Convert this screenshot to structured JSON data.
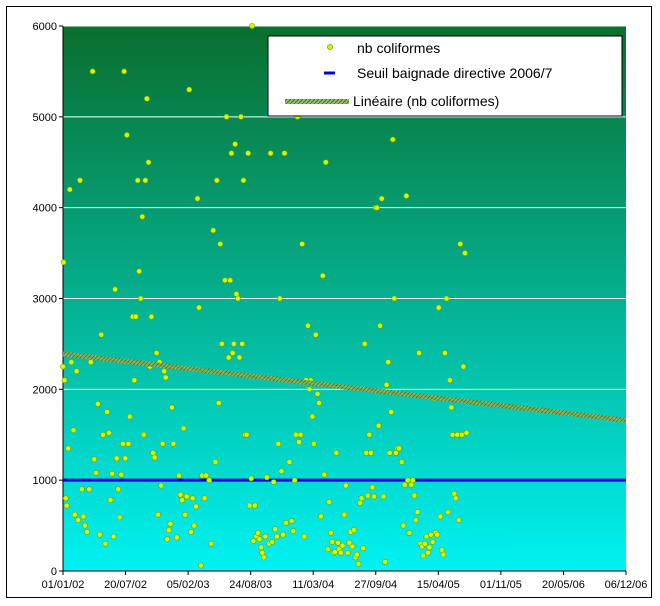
{
  "chart_data": {
    "type": "scatter",
    "title": "",
    "xlabel": "",
    "ylabel": "",
    "ylim": [
      0,
      6000
    ],
    "y_ticks": [
      0,
      1000,
      2000,
      3000,
      4000,
      5000,
      6000
    ],
    "x_ticks": [
      "01/01/02",
      "20/07/02",
      "05/02/03",
      "24/08/03",
      "11/03/04",
      "27/09/04",
      "15/04/05",
      "01/11/05",
      "20/05/06",
      "06/12/06"
    ],
    "x_range": [
      "2002-01-01",
      "2006-12-31"
    ],
    "grid": true,
    "legend_position": "top-right",
    "colors": {
      "points": "#ccff00",
      "points_stroke": "#7a9a00",
      "threshold": "#0000dd",
      "trend": "#6e9a4e",
      "bg_top": "#0a6e2e",
      "bg_bottom": "#00f2f2"
    },
    "series": [
      {
        "name": "nb coliformes",
        "kind": "scatter",
        "points": [
          [
            "2002-01-01",
            2250
          ],
          [
            "2002-01-03",
            3400
          ],
          [
            "2002-01-06",
            2100
          ],
          [
            "2002-01-10",
            800
          ],
          [
            "2002-01-13",
            720
          ],
          [
            "2002-01-18",
            1350
          ],
          [
            "2002-01-23",
            4200
          ],
          [
            "2002-01-28",
            2300
          ],
          [
            "2002-02-04",
            1550
          ],
          [
            "2002-02-08",
            620
          ],
          [
            "2002-02-14",
            2200
          ],
          [
            "2002-02-19",
            560
          ],
          [
            "2002-02-25",
            4300
          ],
          [
            "2002-03-03",
            900
          ],
          [
            "2002-03-08",
            600
          ],
          [
            "2002-03-13",
            500
          ],
          [
            "2002-03-20",
            430
          ],
          [
            "2002-03-27",
            900
          ],
          [
            "2002-04-01",
            2300
          ],
          [
            "2002-04-07",
            5500
          ],
          [
            "2002-04-12",
            1230
          ],
          [
            "2002-04-18",
            1080
          ],
          [
            "2002-04-24",
            1840
          ],
          [
            "2002-04-30",
            400
          ],
          [
            "2002-05-05",
            2600
          ],
          [
            "2002-05-11",
            1500
          ],
          [
            "2002-05-18",
            300
          ],
          [
            "2002-05-24",
            1750
          ],
          [
            "2002-05-30",
            1520
          ],
          [
            "2002-06-04",
            780
          ],
          [
            "2002-06-09",
            1070
          ],
          [
            "2002-06-14",
            380
          ],
          [
            "2002-06-19",
            3100
          ],
          [
            "2002-06-24",
            1240
          ],
          [
            "2002-06-29",
            900
          ],
          [
            "2002-07-04",
            590
          ],
          [
            "2002-07-09",
            1060
          ],
          [
            "2002-07-14",
            1400
          ],
          [
            "2002-07-18",
            5500
          ],
          [
            "2002-07-22",
            1240
          ],
          [
            "2002-07-27",
            4800
          ],
          [
            "2002-08-01",
            1400
          ],
          [
            "2002-08-06",
            1700
          ],
          [
            "2002-08-15",
            2800
          ],
          [
            "2002-08-20",
            2100
          ],
          [
            "2002-08-25",
            2800
          ],
          [
            "2002-08-31",
            4300
          ],
          [
            "2002-09-05",
            3300
          ],
          [
            "2002-09-10",
            3000
          ],
          [
            "2002-09-15",
            3900
          ],
          [
            "2002-09-20",
            1500
          ],
          [
            "2002-09-25",
            4300
          ],
          [
            "2002-09-30",
            5200
          ],
          [
            "2002-10-05",
            4500
          ],
          [
            "2002-10-10",
            2250
          ],
          [
            "2002-10-15",
            2800
          ],
          [
            "2002-10-20",
            1300
          ],
          [
            "2002-10-25",
            1250
          ],
          [
            "2002-10-31",
            2400
          ],
          [
            "2002-11-05",
            620
          ],
          [
            "2002-11-10",
            2300
          ],
          [
            "2002-11-15",
            940
          ],
          [
            "2002-11-20",
            1400
          ],
          [
            "2002-11-25",
            2200
          ],
          [
            "2002-11-30",
            2130
          ],
          [
            "2002-12-05",
            350
          ],
          [
            "2002-12-10",
            450
          ],
          [
            "2002-12-15",
            520
          ],
          [
            "2002-12-20",
            1800
          ],
          [
            "2002-12-25",
            1400
          ],
          [
            "2003-01-05",
            370
          ],
          [
            "2003-01-12",
            1050
          ],
          [
            "2003-01-17",
            840
          ],
          [
            "2003-01-22",
            780
          ],
          [
            "2003-01-27",
            1570
          ],
          [
            "2003-02-01",
            620
          ],
          [
            "2003-02-06",
            820
          ],
          [
            "2003-02-14",
            5300
          ],
          [
            "2003-02-20",
            430
          ],
          [
            "2003-02-25",
            800
          ],
          [
            "2003-03-02",
            500
          ],
          [
            "2003-03-08",
            710
          ],
          [
            "2003-03-13",
            4100
          ],
          [
            "2003-03-18",
            2900
          ],
          [
            "2003-03-24",
            60
          ],
          [
            "2003-03-28",
            1050
          ],
          [
            "2003-04-05",
            800
          ],
          [
            "2003-04-10",
            1050
          ],
          [
            "2003-04-20",
            1000
          ],
          [
            "2003-04-26",
            300
          ],
          [
            "2003-05-03",
            3750
          ],
          [
            "2003-05-10",
            1200
          ],
          [
            "2003-05-15",
            4300
          ],
          [
            "2003-05-21",
            1850
          ],
          [
            "2003-05-26",
            3600
          ],
          [
            "2003-05-31",
            2500
          ],
          [
            "2003-06-10",
            3200
          ],
          [
            "2003-06-15",
            5000
          ],
          [
            "2003-06-22",
            2350
          ],
          [
            "2003-06-27",
            3200
          ],
          [
            "2003-07-01",
            4600
          ],
          [
            "2003-07-05",
            2400
          ],
          [
            "2003-07-09",
            2500
          ],
          [
            "2003-07-13",
            4700
          ],
          [
            "2003-07-17",
            3050
          ],
          [
            "2003-07-22",
            3000
          ],
          [
            "2003-07-27",
            2350
          ],
          [
            "2003-08-01",
            5000
          ],
          [
            "2003-08-05",
            2500
          ],
          [
            "2003-08-09",
            4300
          ],
          [
            "2003-08-14",
            1500
          ],
          [
            "2003-08-19",
            1500
          ],
          [
            "2003-08-24",
            4600
          ],
          [
            "2003-08-29",
            720
          ],
          [
            "2003-09-03",
            1020
          ],
          [
            "2003-09-06",
            6000
          ],
          [
            "2003-09-10",
            330
          ],
          [
            "2003-09-15",
            720
          ],
          [
            "2003-09-20",
            380
          ],
          [
            "2003-09-25",
            420
          ],
          [
            "2003-09-30",
            350
          ],
          [
            "2003-10-05",
            260
          ],
          [
            "2003-10-09",
            200
          ],
          [
            "2003-10-14",
            150
          ],
          [
            "2003-10-19",
            380
          ],
          [
            "2003-10-24",
            1030
          ],
          [
            "2003-10-31",
            300
          ],
          [
            "2003-11-05",
            4600
          ],
          [
            "2003-11-10",
            320
          ],
          [
            "2003-11-15",
            980
          ],
          [
            "2003-11-20",
            460
          ],
          [
            "2003-11-25",
            380
          ],
          [
            "2003-11-30",
            1400
          ],
          [
            "2003-12-05",
            3000
          ],
          [
            "2003-12-10",
            1100
          ],
          [
            "2003-12-15",
            400
          ],
          [
            "2003-12-20",
            4600
          ],
          [
            "2003-12-25",
            530
          ],
          [
            "2004-01-05",
            1200
          ],
          [
            "2004-01-12",
            550
          ],
          [
            "2004-01-17",
            440
          ],
          [
            "2004-01-22",
            1000
          ],
          [
            "2004-01-26",
            1500
          ],
          [
            "2004-01-31",
            5000
          ],
          [
            "2004-02-05",
            1420
          ],
          [
            "2004-02-10",
            1500
          ],
          [
            "2004-02-15",
            3600
          ],
          [
            "2004-02-22",
            380
          ],
          [
            "2004-02-28",
            2100
          ],
          [
            "2004-03-05",
            2700
          ],
          [
            "2004-03-10",
            2000
          ],
          [
            "2004-03-14",
            2100
          ],
          [
            "2004-03-19",
            1700
          ],
          [
            "2004-03-24",
            1400
          ],
          [
            "2004-03-30",
            2600
          ],
          [
            "2004-04-05",
            1950
          ],
          [
            "2004-04-10",
            1850
          ],
          [
            "2004-04-16",
            600
          ],
          [
            "2004-04-22",
            3250
          ],
          [
            "2004-04-27",
            1060
          ],
          [
            "2004-05-02",
            4500
          ],
          [
            "2004-05-08",
            240
          ],
          [
            "2004-05-13",
            760
          ],
          [
            "2004-05-18",
            420
          ],
          [
            "2004-05-23",
            320
          ],
          [
            "2004-05-27",
            200
          ],
          [
            "2004-06-01",
            210
          ],
          [
            "2004-06-05",
            1300
          ],
          [
            "2004-06-10",
            310
          ],
          [
            "2004-06-14",
            240
          ],
          [
            "2004-06-20",
            200
          ],
          [
            "2004-06-25",
            280
          ],
          [
            "2004-07-01",
            620
          ],
          [
            "2004-07-06",
            940
          ],
          [
            "2004-07-12",
            200
          ],
          [
            "2004-07-17",
            310
          ],
          [
            "2004-07-22",
            430
          ],
          [
            "2004-07-27",
            270
          ],
          [
            "2004-08-01",
            450
          ],
          [
            "2004-08-06",
            150
          ],
          [
            "2004-08-11",
            180
          ],
          [
            "2004-08-16",
            80
          ],
          [
            "2004-08-21",
            750
          ],
          [
            "2004-08-26",
            800
          ],
          [
            "2004-08-31",
            250
          ],
          [
            "2004-09-05",
            2500
          ],
          [
            "2004-09-10",
            1300
          ],
          [
            "2004-09-15",
            830
          ],
          [
            "2004-09-20",
            1500
          ],
          [
            "2004-09-25",
            1300
          ],
          [
            "2004-09-30",
            920
          ],
          [
            "2004-10-05",
            820
          ],
          [
            "2004-10-10",
            4000
          ],
          [
            "2004-10-15",
            4000
          ],
          [
            "2004-10-20",
            1600
          ],
          [
            "2004-10-25",
            2700
          ],
          [
            "2004-10-30",
            4100
          ],
          [
            "2004-11-05",
            820
          ],
          [
            "2004-11-10",
            100
          ],
          [
            "2004-11-15",
            2050
          ],
          [
            "2004-11-20",
            2300
          ],
          [
            "2004-11-25",
            1300
          ],
          [
            "2004-11-30",
            1750
          ],
          [
            "2004-12-05",
            4750
          ],
          [
            "2004-12-10",
            3000
          ],
          [
            "2004-12-15",
            1300
          ],
          [
            "2004-12-20",
            1350
          ],
          [
            "2004-12-25",
            1350
          ],
          [
            "2005-01-03",
            1200
          ],
          [
            "2005-01-08",
            500
          ],
          [
            "2005-01-13",
            950
          ],
          [
            "2005-01-18",
            4130
          ],
          [
            "2005-01-23",
            1000
          ],
          [
            "2005-01-28",
            420
          ],
          [
            "2005-02-03",
            950
          ],
          [
            "2005-02-08",
            1000
          ],
          [
            "2005-02-13",
            830
          ],
          [
            "2005-02-18",
            560
          ],
          [
            "2005-02-23",
            650
          ],
          [
            "2005-02-28",
            2400
          ],
          [
            "2005-03-05",
            300
          ],
          [
            "2005-03-10",
            270
          ],
          [
            "2005-03-14",
            170
          ],
          [
            "2005-03-19",
            300
          ],
          [
            "2005-03-24",
            380
          ],
          [
            "2005-03-29",
            200
          ],
          [
            "2005-04-03",
            260
          ],
          [
            "2005-04-08",
            400
          ],
          [
            "2005-04-13",
            320
          ],
          [
            "2005-04-18",
            1900
          ],
          [
            "2005-04-23",
            420
          ],
          [
            "2005-04-28",
            400
          ],
          [
            "2005-05-03",
            2900
          ],
          [
            "2005-05-08",
            600
          ],
          [
            "2005-05-13",
            230
          ],
          [
            "2005-05-18",
            180
          ],
          [
            "2005-05-23",
            2400
          ],
          [
            "2005-05-28",
            3000
          ],
          [
            "2005-06-02",
            650
          ],
          [
            "2005-06-08",
            2100
          ],
          [
            "2005-06-13",
            1800
          ],
          [
            "2005-06-17",
            1500
          ],
          [
            "2005-06-22",
            850
          ],
          [
            "2005-06-27",
            800
          ],
          [
            "2005-07-02",
            1500
          ],
          [
            "2005-07-07",
            560
          ],
          [
            "2005-07-12",
            3600
          ],
          [
            "2005-07-17",
            1500
          ],
          [
            "2005-07-22",
            2250
          ],
          [
            "2005-07-27",
            3500
          ],
          [
            "2005-08-01",
            1520
          ]
        ]
      },
      {
        "name": "Seuil baignade directive 2006/7",
        "kind": "hline",
        "y": 1000
      },
      {
        "name": "Linéaire (nb coliformes)",
        "kind": "trend",
        "start": [
          "2002-01-01",
          2390
        ],
        "end": [
          "2006-12-31",
          1660
        ]
      }
    ]
  }
}
